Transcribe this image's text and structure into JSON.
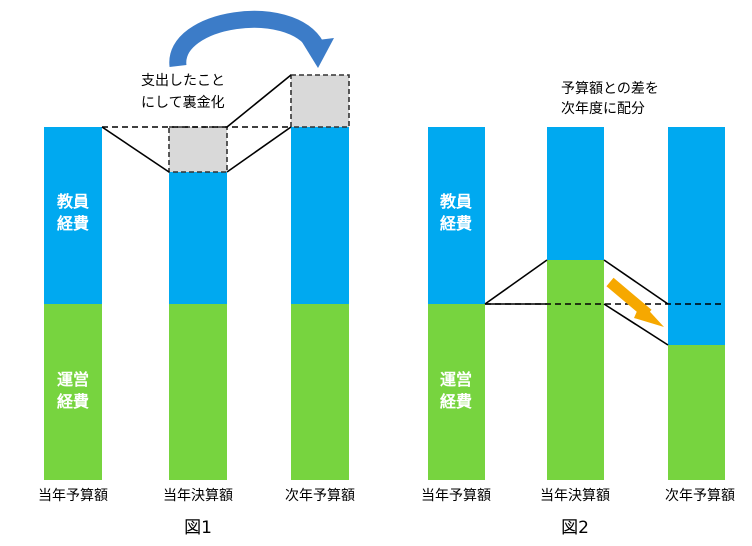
{
  "colors": {
    "teacher_cost": "#00A9F0",
    "operating_cost": "#77D43F",
    "curved_arrow": "#3C7CC8",
    "diagonal_arrow": "#F6A800",
    "hidden_fund_box": "#D9D9D9",
    "line": "#000000"
  },
  "segment_labels": {
    "teacher_cost": [
      "教員",
      "経費"
    ],
    "operating_cost": [
      "運営",
      "経費"
    ]
  },
  "figure1": {
    "caption": "図1",
    "x_labels": [
      "当年予算額",
      "当年決算額",
      "次年予算額"
    ],
    "note": [
      "支出したこと",
      "にして裏金化"
    ],
    "arrow_icon": "curved-arrow-icon"
  },
  "figure2": {
    "caption": "図2",
    "x_labels": [
      "当年予算額",
      "当年決算額",
      "次年予算額"
    ],
    "note": [
      "予算額との差を",
      "次年度に配分"
    ],
    "arrow_icon": "diagonal-arrow-icon"
  }
}
